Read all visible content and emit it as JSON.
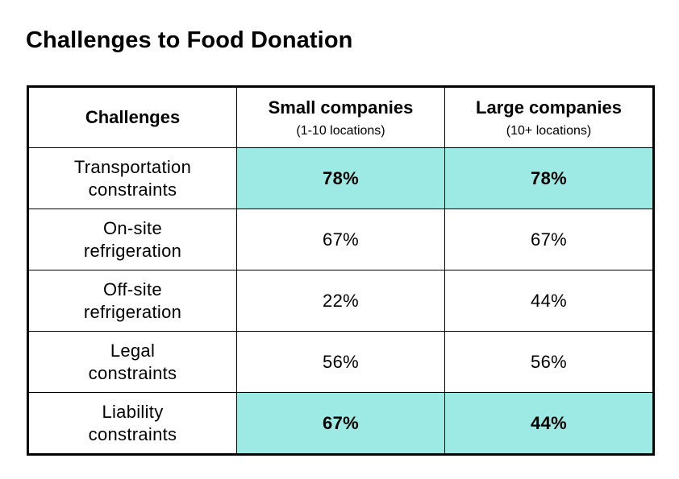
{
  "title": "Challenges to Food Donation",
  "highlight_color": "#9deae4",
  "chart_data": {
    "type": "table",
    "columns": [
      {
        "label": "Challenges",
        "sublabel": ""
      },
      {
        "label": "Small companies",
        "sublabel": "(1-10 locations)"
      },
      {
        "label": "Large companies",
        "sublabel": "(10+ locations)"
      }
    ],
    "rows": [
      {
        "label_lines": [
          "Transportation",
          "constraints"
        ],
        "small": "78%",
        "large": "78%",
        "highlight": true
      },
      {
        "label_lines": [
          "On-site",
          "refrigeration"
        ],
        "small": "67%",
        "large": "67%",
        "highlight": false
      },
      {
        "label_lines": [
          "Off-site",
          "refrigeration"
        ],
        "small": "22%",
        "large": "44%",
        "highlight": false
      },
      {
        "label_lines": [
          "Legal",
          "constraints"
        ],
        "small": "56%",
        "large": "56%",
        "highlight": false
      },
      {
        "label_lines": [
          "Liability",
          "constraints"
        ],
        "small": "67%",
        "large": "44%",
        "highlight": true
      }
    ]
  }
}
